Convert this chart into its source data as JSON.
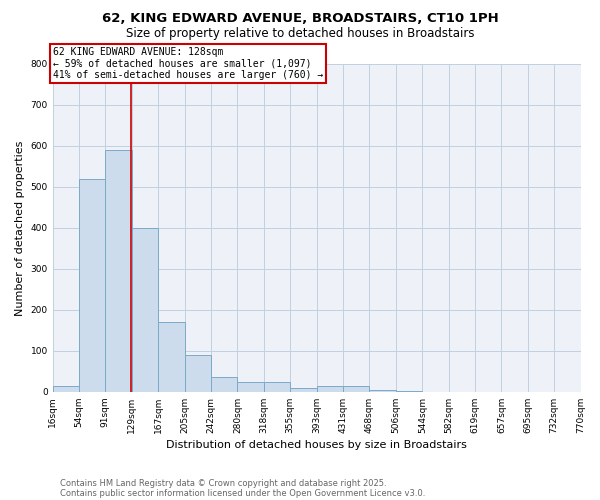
{
  "title1": "62, KING EDWARD AVENUE, BROADSTAIRS, CT10 1PH",
  "title2": "Size of property relative to detached houses in Broadstairs",
  "xlabel": "Distribution of detached houses by size in Broadstairs",
  "ylabel": "Number of detached properties",
  "bin_edges": [
    16,
    54,
    91,
    129,
    167,
    205,
    242,
    280,
    318,
    355,
    393,
    431,
    468,
    506,
    544,
    582,
    619,
    657,
    695,
    732,
    770
  ],
  "bar_heights": [
    15,
    520,
    590,
    400,
    170,
    90,
    35,
    25,
    25,
    10,
    15,
    15,
    5,
    3,
    0,
    0,
    0,
    0,
    0,
    0
  ],
  "bar_color": "#ccdcec",
  "bar_edge_color": "#7aaac8",
  "bar_edge_width": 0.7,
  "grid_color": "#c0d0e0",
  "background_color": "#eef2f8",
  "red_line_x": 128,
  "annotation_title": "62 KING EDWARD AVENUE: 128sqm",
  "annotation_line1": "← 59% of detached houses are smaller (1,097)",
  "annotation_line2": "41% of semi-detached houses are larger (760) →",
  "annotation_box_color": "#ffffff",
  "annotation_border_color": "#cc0000",
  "red_line_color": "#cc0000",
  "ylim": [
    0,
    800
  ],
  "yticks": [
    0,
    100,
    200,
    300,
    400,
    500,
    600,
    700,
    800
  ],
  "footer1": "Contains HM Land Registry data © Crown copyright and database right 2025.",
  "footer2": "Contains public sector information licensed under the Open Government Licence v3.0.",
  "title_fontsize": 9.5,
  "subtitle_fontsize": 8.5,
  "axis_label_fontsize": 8,
  "tick_fontsize": 6.5,
  "annotation_fontsize": 7,
  "footer_fontsize": 6
}
